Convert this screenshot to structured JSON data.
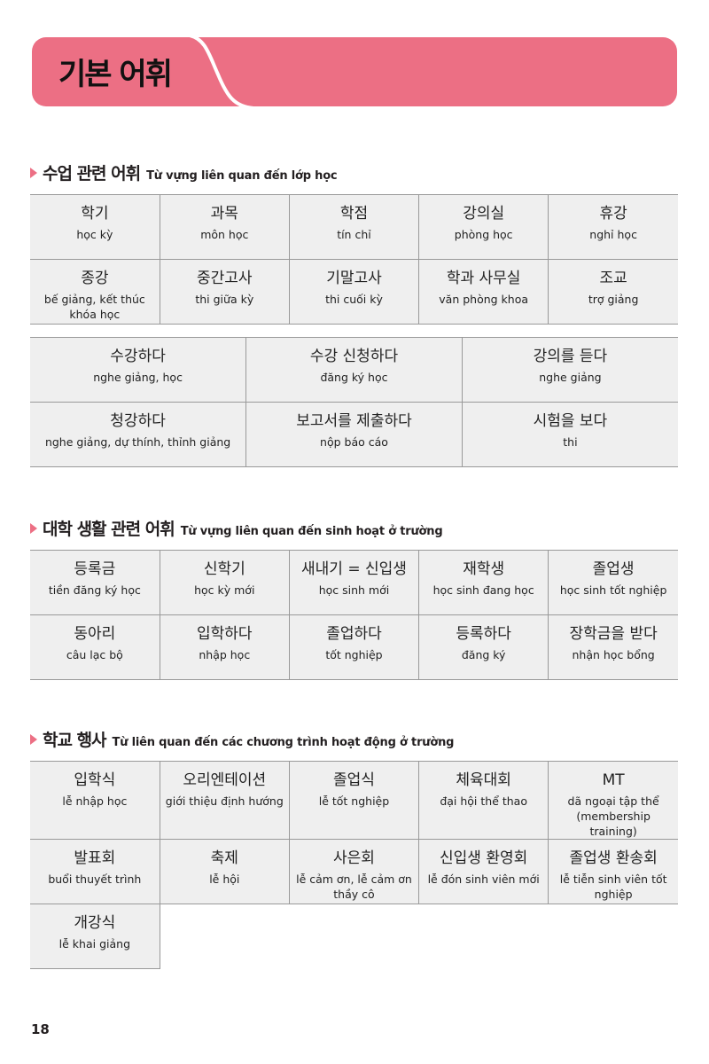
{
  "header": {
    "title": "기본 어휘",
    "color": "#ec6f84"
  },
  "sections": [
    {
      "title_ko": "수업 관련 어휘",
      "title_vi": "Từ vựng liên quan đến lớp học",
      "tables": [
        [
          [
            {
              "ko": "학기",
              "vi": "học kỳ"
            },
            {
              "ko": "과목",
              "vi": "môn học"
            },
            {
              "ko": "학점",
              "vi": "tín chỉ"
            },
            {
              "ko": "강의실",
              "vi": "phòng học"
            },
            {
              "ko": "휴강",
              "vi": "nghỉ học"
            }
          ],
          [
            {
              "ko": "종강",
              "vi": "bế giảng, kết thúc khóa học"
            },
            {
              "ko": "중간고사",
              "vi": "thi giữa kỳ"
            },
            {
              "ko": "기말고사",
              "vi": "thi cuối kỳ"
            },
            {
              "ko": "학과 사무실",
              "vi": "văn phòng khoa"
            },
            {
              "ko": "조교",
              "vi": "trợ giảng"
            }
          ]
        ],
        [
          [
            {
              "ko": "수강하다",
              "vi": "nghe giảng, học"
            },
            {
              "ko": "수강 신청하다",
              "vi": "đăng ký học"
            },
            {
              "ko": "강의를 듣다",
              "vi": "nghe giảng"
            }
          ],
          [
            {
              "ko": "청강하다",
              "vi": "nghe giảng, dự thính, thỉnh giảng"
            },
            {
              "ko": "보고서를 제출하다",
              "vi": "nộp báo cáo"
            },
            {
              "ko": "시험을 보다",
              "vi": "thi"
            }
          ]
        ]
      ]
    },
    {
      "title_ko": "대학 생활 관련 어휘",
      "title_vi": "Từ vựng liên quan đến sinh hoạt ở trường",
      "tables": [
        [
          [
            {
              "ko": "등록금",
              "vi": "tiền đăng ký học"
            },
            {
              "ko": "신학기",
              "vi": "học kỳ mới"
            },
            {
              "ko": "새내기 = 신입생",
              "vi": "học sinh mới"
            },
            {
              "ko": "재학생",
              "vi": "học sinh đang học"
            },
            {
              "ko": "졸업생",
              "vi": "học sinh tốt nghiệp"
            }
          ],
          [
            {
              "ko": "동아리",
              "vi": "câu lạc bộ"
            },
            {
              "ko": "입학하다",
              "vi": "nhập học"
            },
            {
              "ko": "졸업하다",
              "vi": "tốt nghiệp"
            },
            {
              "ko": "등록하다",
              "vi": "đăng ký"
            },
            {
              "ko": "장학금을 받다",
              "vi": "nhận học bổng"
            }
          ]
        ]
      ]
    },
    {
      "title_ko": "학교 행사",
      "title_vi": "Từ liên quan đến các chương trình hoạt động ở trường",
      "tables": [
        [
          [
            {
              "ko": "입학식",
              "vi": "lễ nhập học"
            },
            {
              "ko": "오리엔테이션",
              "vi": "giới thiệu định hướng"
            },
            {
              "ko": "졸업식",
              "vi": "lễ tốt nghiệp"
            },
            {
              "ko": "체육대회",
              "vi": "đại hội thể thao"
            },
            {
              "ko": "MT",
              "vi": "dã ngoại tập thể (membership training)"
            }
          ],
          [
            {
              "ko": "발표회",
              "vi": "buổi thuyết trình"
            },
            {
              "ko": "축제",
              "vi": "lễ hội"
            },
            {
              "ko": "사은회",
              "vi": "lễ cảm ơn, lễ cảm ơn thầy cô"
            },
            {
              "ko": "신입생 환영회",
              "vi": "lễ đón sinh viên mới"
            },
            {
              "ko": "졸업생 환송회",
              "vi": "lễ tiễn sinh viên tốt nghiệp"
            }
          ],
          [
            {
              "ko": "개강식",
              "vi": "lễ khai giảng"
            }
          ]
        ]
      ]
    }
  ],
  "page_number": "18"
}
